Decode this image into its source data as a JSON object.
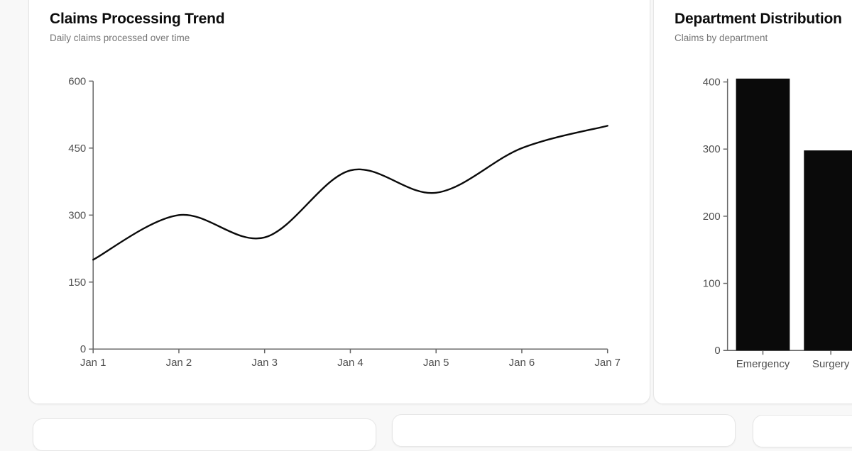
{
  "cards": [
    {
      "title": "Claims Processing Trend",
      "subtitle": "Daily claims processed over time"
    },
    {
      "title": "Department Distribution",
      "subtitle": "Claims by department"
    }
  ],
  "chart_data": [
    {
      "type": "line",
      "title": "Claims Processing Trend",
      "subtitle": "Daily claims processed over time",
      "categories": [
        "Jan 1",
        "Jan 2",
        "Jan 3",
        "Jan 4",
        "Jan 5",
        "Jan 6",
        "Jan 7"
      ],
      "values": [
        200,
        300,
        250,
        400,
        350,
        450,
        500
      ],
      "xlabel": "",
      "ylabel": "",
      "ylim": [
        0,
        600
      ],
      "yticks": [
        0,
        150,
        300,
        450,
        600
      ],
      "curve": "natural",
      "grid": false,
      "legend": false,
      "line_color": "#0a0a0a"
    },
    {
      "type": "bar",
      "title": "Department Distribution",
      "subtitle": "Claims by department",
      "categories": [
        "Emergency",
        "Surgery"
      ],
      "values": [
        405,
        298
      ],
      "xlabel": "",
      "ylabel": "",
      "ylim": [
        0,
        405
      ],
      "yticks": [
        0,
        100,
        200,
        300,
        400
      ],
      "grid": false,
      "legend": false,
      "bar_color": "#0a0a0a"
    }
  ],
  "axis_style": {
    "line_color": "#666666",
    "label_color": "#4f4f4f",
    "label_size": 15
  }
}
